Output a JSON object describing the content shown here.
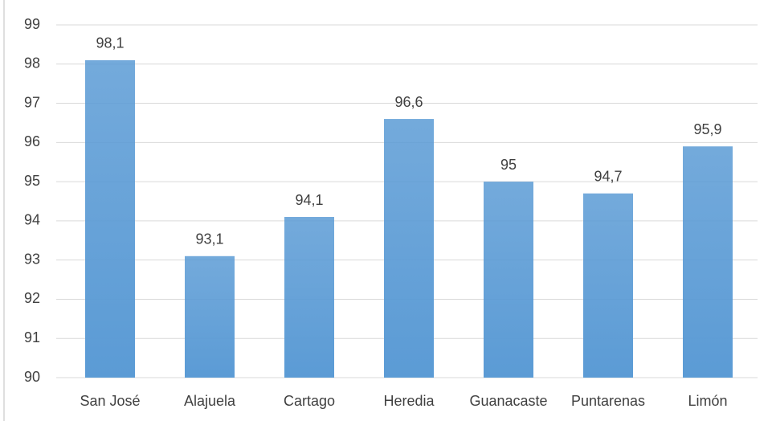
{
  "chart_data": {
    "type": "bar",
    "categories": [
      "San José",
      "Alajuela",
      "Cartago",
      "Heredia",
      "Guanacaste",
      "Puntarenas",
      "Limón"
    ],
    "values": [
      98.1,
      93.1,
      94.1,
      96.6,
      95,
      94.7,
      95.9
    ],
    "value_labels": [
      "98,1",
      "93,1",
      "94,1",
      "96,6",
      "95",
      "94,7",
      "95,9"
    ],
    "color": "#5b9bd5",
    "ylim": [
      90,
      99
    ],
    "yticks": [
      90,
      91,
      92,
      93,
      94,
      95,
      96,
      97,
      98,
      99
    ],
    "grid": true
  }
}
